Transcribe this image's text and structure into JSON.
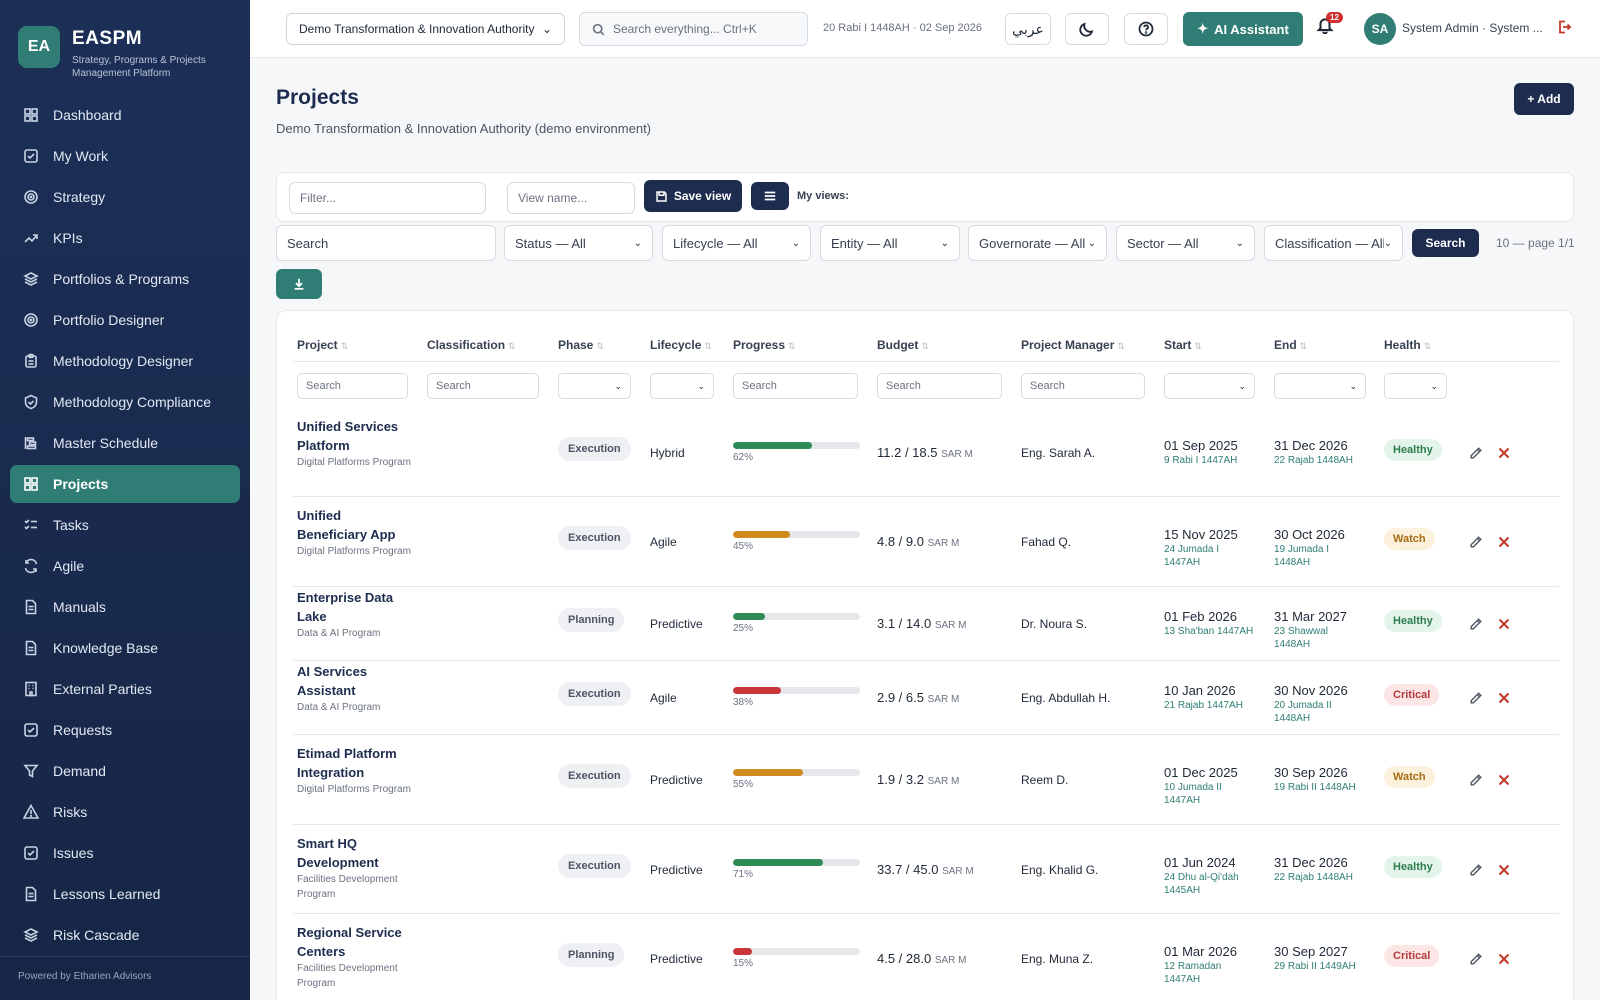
{
  "app": {
    "logo_initials": "EA",
    "name": "EASPM",
    "subtitle": "Strategy, Programs & Projects Management Platform",
    "powered_by": "Powered by Etharien Advisors"
  },
  "sidebar": {
    "items": [
      {
        "label": "Dashboard",
        "icon": "grid-icon",
        "active": false
      },
      {
        "label": "My Work",
        "icon": "check-square-icon",
        "active": false
      },
      {
        "label": "Strategy",
        "icon": "target-icon",
        "active": false
      },
      {
        "label": "KPIs",
        "icon": "trend-up-icon",
        "active": false
      },
      {
        "label": "Portfolios & Programs",
        "icon": "layers-icon",
        "active": false
      },
      {
        "label": "Portfolio Designer",
        "icon": "target-icon",
        "active": false
      },
      {
        "label": "Methodology Designer",
        "icon": "clipboard-icon",
        "active": false
      },
      {
        "label": "Methodology Compliance",
        "icon": "shield-icon",
        "active": false
      },
      {
        "label": "Master Schedule",
        "icon": "gantt-icon",
        "active": false
      },
      {
        "label": "Projects",
        "icon": "grid-icon",
        "active": true
      },
      {
        "label": "Tasks",
        "icon": "list-check-icon",
        "active": false
      },
      {
        "label": "Agile",
        "icon": "refresh-icon",
        "active": false
      },
      {
        "label": "Manuals",
        "icon": "document-icon",
        "active": false
      },
      {
        "label": "Knowledge Base",
        "icon": "document-icon",
        "active": false
      },
      {
        "label": "External Parties",
        "icon": "building-icon",
        "active": false
      },
      {
        "label": "Requests",
        "icon": "check-square-icon",
        "active": false
      },
      {
        "label": "Demand",
        "icon": "funnel-icon",
        "active": false
      },
      {
        "label": "Risks",
        "icon": "warning-icon",
        "active": false
      },
      {
        "label": "Issues",
        "icon": "check-square-icon",
        "active": false
      },
      {
        "label": "Lessons Learned",
        "icon": "document-icon",
        "active": false
      },
      {
        "label": "Risk Cascade",
        "icon": "layers-icon",
        "active": false
      }
    ]
  },
  "topbar": {
    "org_select": "Demo Transformation & Innovation Authority",
    "search_placeholder": "Search everything... Ctrl+K",
    "hijri_date": "20 Rabi I 1448AH",
    "date_sep": "·",
    "greg_date": "02 Sep 2026",
    "lang_button": "عربي",
    "ai_button": "AI Assistant",
    "notif_count": "12",
    "avatar_initials": "SA",
    "user_label": "System Admin · System ..."
  },
  "page": {
    "title": "Projects",
    "subtitle": "Demo Transformation & Innovation Authority (demo environment)",
    "add_button": "+ Add"
  },
  "views": {
    "filter_placeholder": "Filter...",
    "view_name_placeholder": "View name...",
    "save_view": "Save view",
    "my_views_label": "My views:"
  },
  "filters": {
    "search_placeholder": "Search",
    "status": "Status — All",
    "lifecycle": "Lifecycle — All",
    "entity": "Entity — All",
    "governorate": "Governorate — All",
    "sector": "Sector — All",
    "classification": "Classification — All",
    "search_button": "Search",
    "page_info": "10 — page 1/1"
  },
  "table": {
    "columns": [
      "Project",
      "Classification",
      "Phase",
      "Lifecycle",
      "Progress",
      "Budget",
      "Project Manager",
      "Start",
      "End",
      "Health"
    ],
    "column_filter_placeholder": "Search",
    "sort_glyph": "⇅",
    "budget_unit": "SAR M",
    "rows": [
      {
        "name": "Unified Services Platform",
        "program": "Digital Platforms Program",
        "phase": "Execution",
        "lifecycle": "Hybrid",
        "progress": 62,
        "progress_label": "62%",
        "progress_color": "#2e8b57",
        "budget": "11.2 / 18.5",
        "pm": "Eng. Sarah A.",
        "start": "01 Sep 2025",
        "start_hijri": "9 Rabi I 1447AH",
        "end": "31 Dec 2026",
        "end_hijri": "22 Rajab 1448AH",
        "health": "Healthy"
      },
      {
        "name": "Unified Beneficiary App",
        "program": "Digital Platforms Program",
        "phase": "Execution",
        "lifecycle": "Agile",
        "progress": 45,
        "progress_label": "45%",
        "progress_color": "#d08a1e",
        "budget": "4.8 / 9.0",
        "pm": "Fahad Q.",
        "start": "15 Nov 2025",
        "start_hijri": "24 Jumada I 1447AH",
        "end": "30 Oct 2026",
        "end_hijri": "19 Jumada I 1448AH",
        "health": "Watch"
      },
      {
        "name": "Enterprise Data Lake",
        "program": "Data & AI Program",
        "phase": "Planning",
        "lifecycle": "Predictive",
        "progress": 25,
        "progress_label": "25%",
        "progress_color": "#2e8b57",
        "budget": "3.1 / 14.0",
        "pm": "Dr. Noura S.",
        "start": "01 Feb 2026",
        "start_hijri": "13 Sha'ban 1447AH",
        "end": "31 Mar 2027",
        "end_hijri": "23 Shawwal 1448AH",
        "health": "Healthy"
      },
      {
        "name": "AI Services Assistant",
        "program": "Data & AI Program",
        "phase": "Execution",
        "lifecycle": "Agile",
        "progress": 38,
        "progress_label": "38%",
        "progress_color": "#c8363a",
        "budget": "2.9 / 6.5",
        "pm": "Eng. Abdullah H.",
        "start": "10 Jan 2026",
        "start_hijri": "21 Rajab 1447AH",
        "end": "30 Nov 2026",
        "end_hijri": "20 Jumada II 1448AH",
        "health": "Critical"
      },
      {
        "name": "Etimad Platform Integration",
        "program": "Digital Platforms Program",
        "phase": "Execution",
        "lifecycle": "Predictive",
        "progress": 55,
        "progress_label": "55%",
        "progress_color": "#d08a1e",
        "budget": "1.9 / 3.2",
        "pm": "Reem D.",
        "start": "01 Dec 2025",
        "start_hijri": "10 Jumada II 1447AH",
        "end": "30 Sep 2026",
        "end_hijri": "19 Rabi II 1448AH",
        "health": "Watch"
      },
      {
        "name": "Smart HQ Development",
        "program": "Facilities Development Program",
        "phase": "Execution",
        "lifecycle": "Predictive",
        "progress": 71,
        "progress_label": "71%",
        "progress_color": "#2e8b57",
        "budget": "33.7 / 45.0",
        "pm": "Eng. Khalid G.",
        "start": "01 Jun 2024",
        "start_hijri": "24 Dhu al-Qi'dah 1445AH",
        "end": "31 Dec 2026",
        "end_hijri": "22 Rajab 1448AH",
        "health": "Healthy"
      },
      {
        "name": "Regional Service Centers",
        "program": "Facilities Development Program",
        "phase": "Planning",
        "lifecycle": "Predictive",
        "progress": 15,
        "progress_label": "15%",
        "progress_color": "#c8363a",
        "budget": "4.5 / 28.0",
        "pm": "Eng. Muna Z.",
        "start": "01 Mar 2026",
        "start_hijri": "12 Ramadan 1447AH",
        "end": "30 Sep 2027",
        "end_hijri": "29 Rabi II 1449AH",
        "health": "Critical"
      }
    ]
  }
}
